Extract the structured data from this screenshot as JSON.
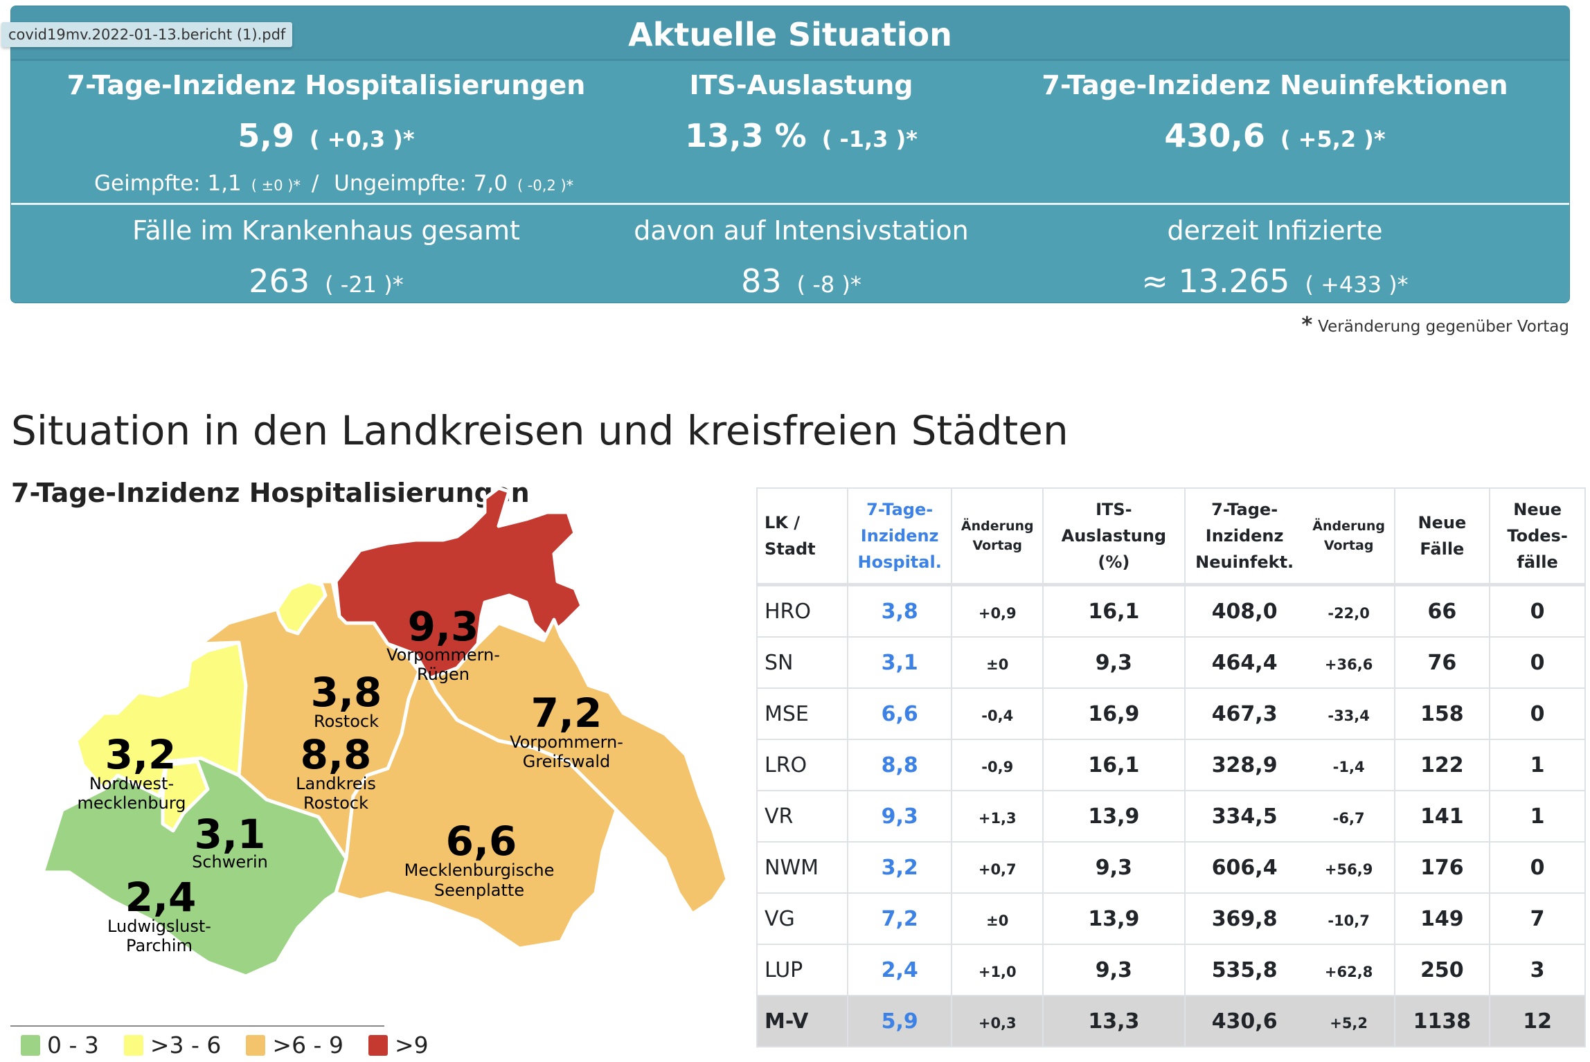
{
  "tooltip": "covid19mv.2022-01-13.bericht (1).pdf",
  "panel": {
    "title": "Aktuelle Situation",
    "metrics": [
      {
        "label": "7-Tage-Inzidenz Hospitalisierungen",
        "value": "5,9",
        "change": "( +0,3 )*"
      },
      {
        "label": "ITS-Auslastung",
        "value": "13,3 %",
        "change": "( -1,3 )*"
      },
      {
        "label": "7-Tage-Inzidenz Neuinfektionen",
        "value": "430,6",
        "change": "( +5,2 )*"
      }
    ],
    "sub": {
      "vaccinated_label": "Geimpfte: 1,1",
      "vaccinated_change": "( ±0 )*",
      "separator": "/",
      "unvaccinated_label": "Ungeimpfte: 7,0",
      "unvaccinated_change": "( -0,2 )*"
    },
    "lower": [
      {
        "label": "Fälle im Krankenhaus gesamt",
        "value": "263",
        "change": "( -21 )*"
      },
      {
        "label": "davon auf Intensivstation",
        "value": "83",
        "change": "( -8 )*"
      },
      {
        "label": "derzeit Infizierte",
        "value": "≈ 13.265",
        "change": "( +433 )*"
      }
    ]
  },
  "footnote": {
    "star": "*",
    "text": "Veränderung gegenüber Vortag"
  },
  "section_heading": "Situation in den Landkreisen und kreisfreien Städten",
  "map": {
    "title": "7-Tage-Inzidenz Hospitalisierungen",
    "colors": {
      "green": "#9cd384",
      "yellow": "#fcfc80",
      "orange": "#f4c46c",
      "red": "#c43a31"
    },
    "regions": [
      {
        "key": "VR",
        "value": "9,3",
        "name1": "Vorpommern-",
        "name2": "Rügen",
        "color": "red"
      },
      {
        "key": "HRO",
        "value": "3,8",
        "name1": "Rostock",
        "name2": "",
        "color": "yellow"
      },
      {
        "key": "LRO",
        "value": "8,8",
        "name1": "Landkreis",
        "name2": "Rostock",
        "color": "orange"
      },
      {
        "key": "VG",
        "value": "7,2",
        "name1": "Vorpommern-",
        "name2": "Greifswald",
        "color": "orange"
      },
      {
        "key": "NWM",
        "value": "3,2",
        "name1": "Nordwest-",
        "name2": "mecklenburg",
        "color": "yellow"
      },
      {
        "key": "SN",
        "value": "3,1",
        "name1": "Schwerin",
        "name2": "",
        "color": "yellow"
      },
      {
        "key": "MSE",
        "value": "6,6",
        "name1": "Mecklenburgische",
        "name2": "Seenplatte",
        "color": "orange"
      },
      {
        "key": "LUP",
        "value": "2,4",
        "name1": "Ludwigslust-",
        "name2": "Parchim",
        "color": "green"
      }
    ],
    "legend": [
      {
        "label": "0 - 3",
        "color": "#9cd384"
      },
      {
        "label": ">3 - 6",
        "color": "#fcfc80"
      },
      {
        "label": ">6 - 9",
        "color": "#f4c46c"
      },
      {
        "label": ">9",
        "color": "#c43a31"
      }
    ]
  },
  "table": {
    "headers": {
      "lk": [
        "LK /",
        "Stadt"
      ],
      "hosp": [
        "7-Tage-",
        "Inzidenz",
        "Hospital."
      ],
      "hosp_chg": [
        "Änderung",
        "Vortag"
      ],
      "its": [
        "ITS-",
        "Auslastung",
        "(%)"
      ],
      "inz": [
        "7-Tage-",
        "Inzidenz",
        "Neuinfekt."
      ],
      "inz_chg": [
        "Änderung",
        "Vortag"
      ],
      "cases": [
        "Neue",
        "Fälle"
      ],
      "deaths": [
        "Neue",
        "Todes-",
        "fälle"
      ]
    },
    "rows": [
      {
        "lk": "HRO",
        "hosp": "3,8",
        "hosp_chg": "+0,9",
        "its": "16,1",
        "inz": "408,0",
        "inz_chg": "-22,0",
        "cases": "66",
        "deaths": "0"
      },
      {
        "lk": "SN",
        "hosp": "3,1",
        "hosp_chg": "±0",
        "its": "9,3",
        "inz": "464,4",
        "inz_chg": "+36,6",
        "cases": "76",
        "deaths": "0"
      },
      {
        "lk": "MSE",
        "hosp": "6,6",
        "hosp_chg": "-0,4",
        "its": "16,9",
        "inz": "467,3",
        "inz_chg": "-33,4",
        "cases": "158",
        "deaths": "0"
      },
      {
        "lk": "LRO",
        "hosp": "8,8",
        "hosp_chg": "-0,9",
        "its": "16,1",
        "inz": "328,9",
        "inz_chg": "-1,4",
        "cases": "122",
        "deaths": "1"
      },
      {
        "lk": "VR",
        "hosp": "9,3",
        "hosp_chg": "+1,3",
        "its": "13,9",
        "inz": "334,5",
        "inz_chg": "-6,7",
        "cases": "141",
        "deaths": "1"
      },
      {
        "lk": "NWM",
        "hosp": "3,2",
        "hosp_chg": "+0,7",
        "its": "9,3",
        "inz": "606,4",
        "inz_chg": "+56,9",
        "cases": "176",
        "deaths": "0"
      },
      {
        "lk": "VG",
        "hosp": "7,2",
        "hosp_chg": "±0",
        "its": "13,9",
        "inz": "369,8",
        "inz_chg": "-10,7",
        "cases": "149",
        "deaths": "7"
      },
      {
        "lk": "LUP",
        "hosp": "2,4",
        "hosp_chg": "+1,0",
        "its": "9,3",
        "inz": "535,8",
        "inz_chg": "+62,8",
        "cases": "250",
        "deaths": "3"
      }
    ],
    "total": {
      "lk": "M-V",
      "hosp": "5,9",
      "hosp_chg": "+0,3",
      "its": "13,3",
      "inz": "430,6",
      "inz_chg": "+5,2",
      "cases": "1138",
      "deaths": "12"
    }
  }
}
